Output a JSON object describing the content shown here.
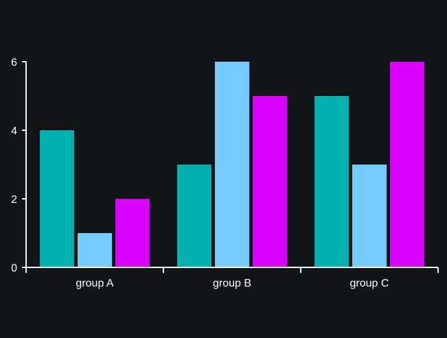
{
  "chart_data": {
    "type": "bar",
    "categories": [
      "group A",
      "group B",
      "group C"
    ],
    "series": [
      {
        "values": [
          4,
          3,
          5
        ],
        "color": "#00b0b0"
      },
      {
        "values": [
          1,
          6,
          3
        ],
        "color": "#75ccff"
      },
      {
        "values": [
          2,
          5,
          6
        ],
        "color": "#d800ff"
      }
    ],
    "ylim": [
      0,
      6
    ],
    "yticks": [
      "0",
      "2",
      "4",
      "6"
    ],
    "grid": false,
    "legend": "none",
    "background": "#111418",
    "axis_color": "#ffffff"
  }
}
